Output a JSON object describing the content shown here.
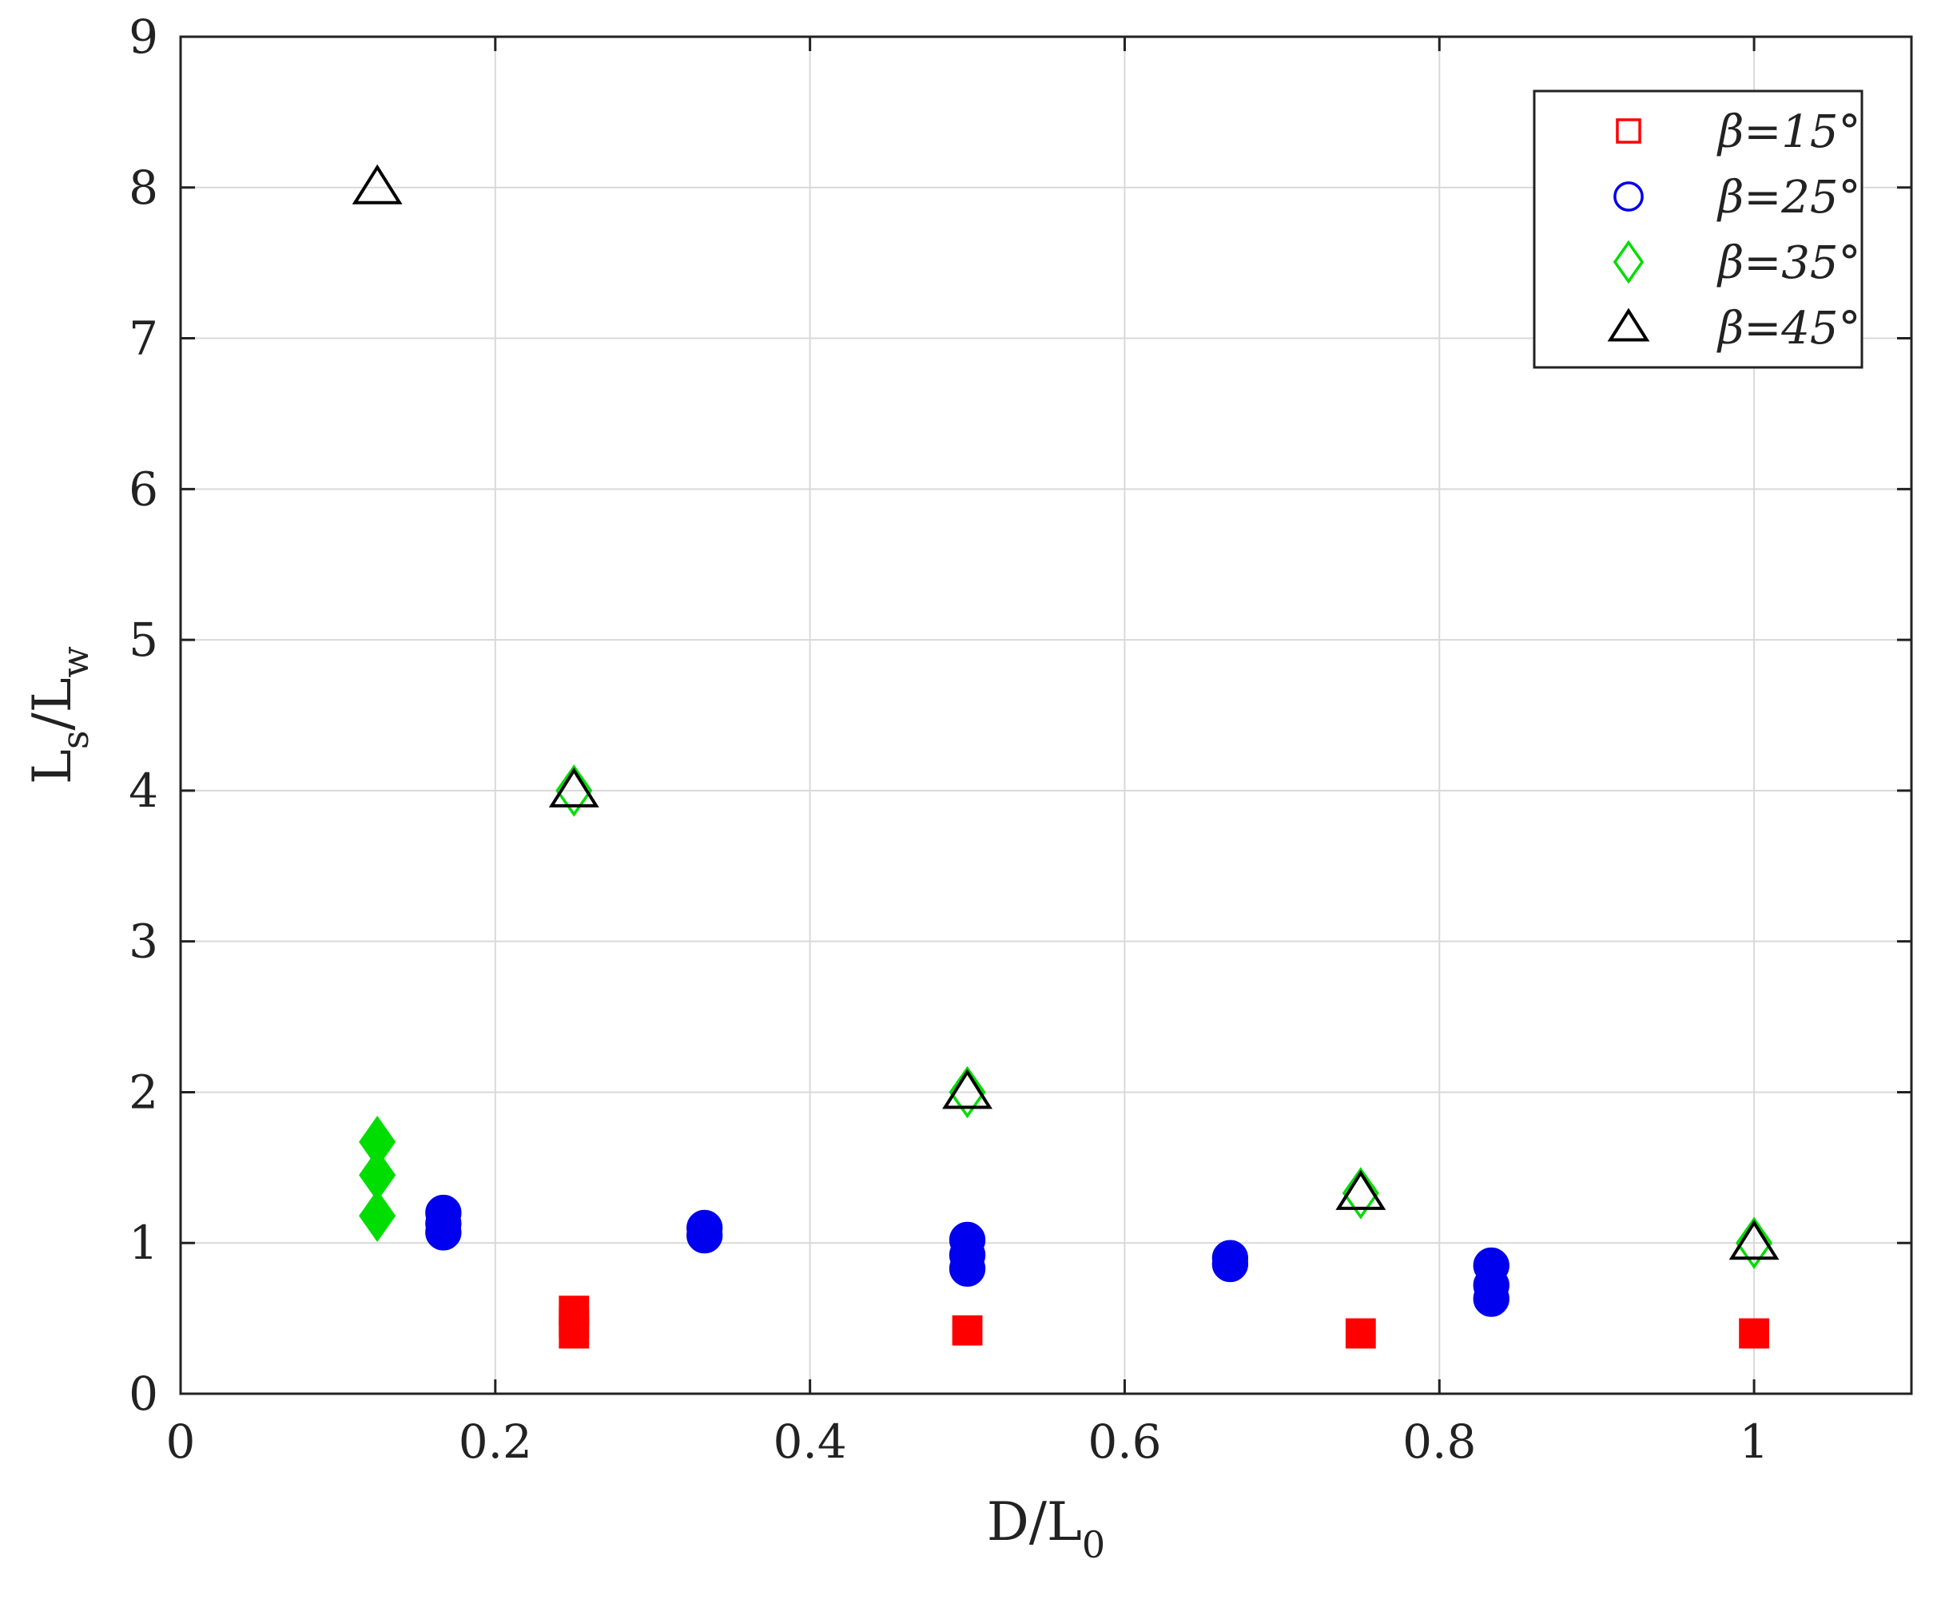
{
  "chart_data": {
    "type": "scatter",
    "title": "",
    "xlabel": {
      "base": "D/L",
      "sub": "0"
    },
    "ylabel": {
      "base": "L",
      "sub1": "s",
      "mid": "/L",
      "sub2": "w"
    },
    "xlim": [
      0,
      1.1
    ],
    "ylim": [
      0,
      9
    ],
    "x_ticks": [
      0,
      0.2,
      0.4,
      0.6,
      0.8,
      1
    ],
    "x_tick_labels": [
      "0",
      "0.2",
      "0.4",
      "0.6",
      "0.8",
      "1"
    ],
    "y_ticks": [
      0,
      1,
      2,
      3,
      4,
      5,
      6,
      7,
      8,
      9
    ],
    "y_tick_labels": [
      "0",
      "1",
      "2",
      "3",
      "4",
      "5",
      "6",
      "7",
      "8",
      "9"
    ],
    "grid": true,
    "legend_position": "top-right",
    "series": [
      {
        "name": "β=15°",
        "marker": "square",
        "color": "#ff0000",
        "points": [
          [
            0.25,
            0.4
          ],
          [
            0.25,
            0.47
          ],
          [
            0.25,
            0.55
          ],
          [
            0.5,
            0.42
          ],
          [
            0.75,
            0.4
          ],
          [
            1.0,
            0.4
          ]
        ]
      },
      {
        "name": "β=25°",
        "marker": "circle",
        "color": "#0000ee",
        "points": [
          [
            0.167,
            1.07
          ],
          [
            0.167,
            1.13
          ],
          [
            0.167,
            1.2
          ],
          [
            0.333,
            1.05
          ],
          [
            0.333,
            1.1
          ],
          [
            0.5,
            0.83
          ],
          [
            0.5,
            0.92
          ],
          [
            0.5,
            1.02
          ],
          [
            0.667,
            0.86
          ],
          [
            0.667,
            0.9
          ],
          [
            0.833,
            0.63
          ],
          [
            0.833,
            0.72
          ],
          [
            0.833,
            0.85
          ]
        ]
      },
      {
        "name": "β=35°",
        "marker": "diamond",
        "color": "#00dd00",
        "points": [
          [
            0.125,
            1.18
          ],
          [
            0.125,
            1.45
          ],
          [
            0.125,
            1.67
          ],
          [
            0.25,
            4.0
          ],
          [
            0.5,
            2.0
          ],
          [
            0.75,
            1.33
          ],
          [
            1.0,
            1.0
          ]
        ]
      },
      {
        "name": "β=45°",
        "marker": "triangle",
        "color": "#000000",
        "points": [
          [
            0.125,
            8.0
          ],
          [
            0.25,
            4.0
          ],
          [
            0.5,
            2.0
          ],
          [
            0.75,
            1.33
          ],
          [
            1.0,
            1.0
          ]
        ]
      }
    ]
  }
}
